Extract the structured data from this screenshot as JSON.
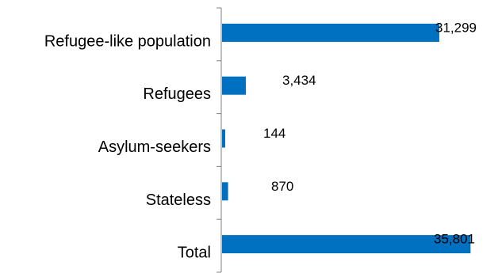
{
  "chart_data": {
    "type": "bar",
    "orientation": "horizontal",
    "categories": [
      "Refugee-like population",
      "Refugees",
      "Asylum-seekers",
      "Stateless",
      "Total"
    ],
    "values": [
      31299,
      3434,
      144,
      870,
      35801
    ],
    "value_labels": [
      "31,299",
      "3,434",
      "144",
      "870",
      "35,801"
    ],
    "title": "",
    "xlabel": "",
    "ylabel": "",
    "xlim": [
      0,
      38500
    ],
    "grid": false,
    "legend": "none",
    "colors": {
      "bar": "#0070C0",
      "axis": "#7f7f7f",
      "label_first": "#595959",
      "label": "#000000"
    }
  }
}
